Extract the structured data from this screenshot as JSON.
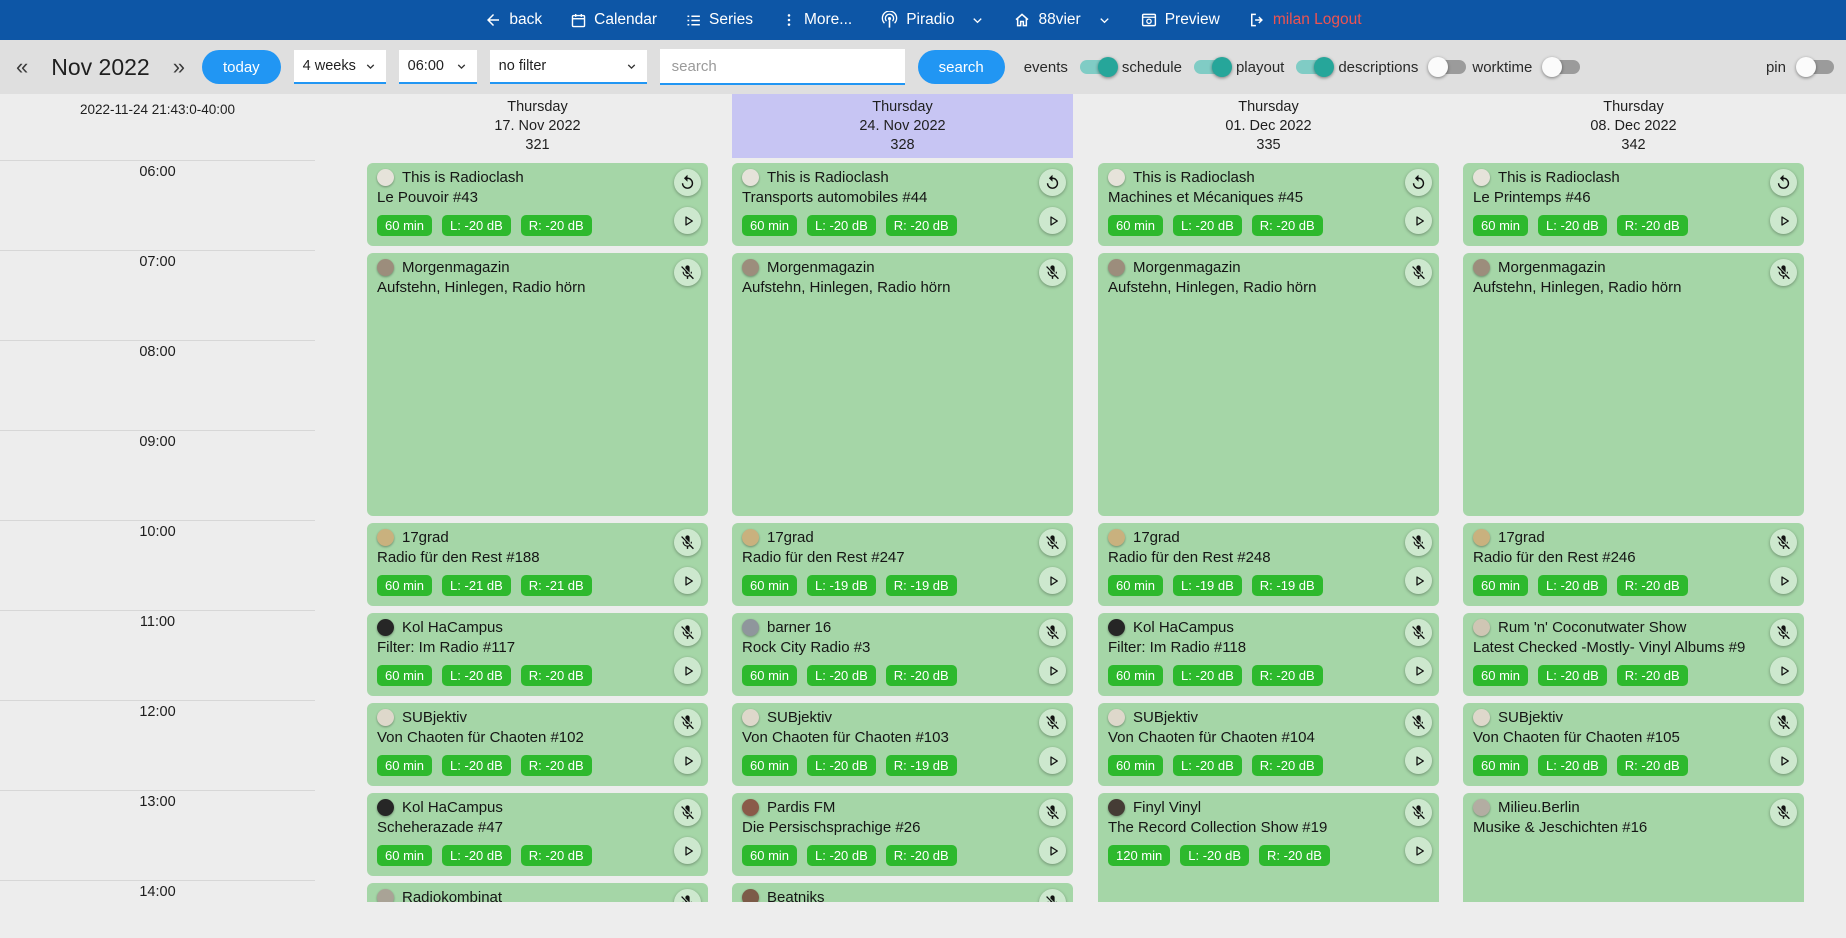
{
  "colors": {
    "nav_bg": "#0d56a6",
    "accent": "#2196f3",
    "toggle_on": "#26a69a",
    "toggle_track_on": "#80ccc5",
    "card_green": "#a5d6a7",
    "badge_green": "#2db92d",
    "highlight": "#c7c5f3",
    "logout_red": "#ef5350"
  },
  "nav": {
    "back_label": "back",
    "calendar_label": "Calendar",
    "series_label": "Series",
    "more_label": "More...",
    "piradio_label": "Piradio",
    "station_label": "88vier",
    "preview_label": "Preview",
    "logout_label": "milan Logout"
  },
  "toolbar": {
    "prev_symbol": "«",
    "next_symbol": "»",
    "month_title": "Nov 2022",
    "today_label": "today",
    "range_value": "4 weeks",
    "time_value": "06:00",
    "filter_value": "no filter",
    "search_placeholder": "search",
    "search_label": "search",
    "toggles": [
      {
        "label": "events",
        "on": true
      },
      {
        "label": "schedule",
        "on": true
      },
      {
        "label": "playout",
        "on": true
      },
      {
        "label": "descriptions",
        "on": false
      },
      {
        "label": "worktime",
        "on": false
      }
    ],
    "pin_toggle": {
      "label": "pin",
      "on": false
    }
  },
  "calendar": {
    "timestamp": "2022-11-24 21:43:0-40:00",
    "hours": [
      "06:00",
      "07:00",
      "08:00",
      "09:00",
      "10:00",
      "11:00",
      "12:00",
      "13:00",
      "14:00"
    ],
    "columns": [
      {
        "weekday": "Thursday",
        "date": "17. Nov 2022",
        "number": "321",
        "highlight": false,
        "events": [
          {
            "show": "This is Radioclash",
            "episode": "Le Pouvoir #43",
            "start": "06:00",
            "duration": 60,
            "badges": [
              "60 min",
              "L: -20 dB",
              "R: -20 dB"
            ],
            "top_icon": "replay",
            "play": true,
            "avatar": "#e6e3da"
          },
          {
            "show": "Morgenmagazin",
            "episode": "Aufstehn, Hinlegen, Radio hörn",
            "start": "07:00",
            "duration": 180,
            "badges": null,
            "top_icon": "mic-off",
            "play": false,
            "avatar": "#9c8d7c"
          },
          {
            "show": "17grad",
            "episode": "Radio für den Rest #188",
            "start": "10:00",
            "duration": 60,
            "badges": [
              "60 min",
              "L: -21 dB",
              "R: -21 dB"
            ],
            "top_icon": "mic-off",
            "play": true,
            "avatar": "#c9b17e"
          },
          {
            "show": "Kol HaCampus",
            "episode": "Filter: Im Radio #117",
            "start": "11:00",
            "duration": 60,
            "badges": [
              "60 min",
              "L: -20 dB",
              "R: -20 dB"
            ],
            "top_icon": "mic-off",
            "play": true,
            "avatar": "#262626"
          },
          {
            "show": "SUBjektiv",
            "episode": "Von Chaoten für Chaoten #102",
            "start": "12:00",
            "duration": 60,
            "badges": [
              "60 min",
              "L: -20 dB",
              "R: -20 dB"
            ],
            "top_icon": "mic-off",
            "play": true,
            "avatar": "#ded8cb"
          },
          {
            "show": "Kol HaCampus",
            "episode": "Scheherazade #47",
            "start": "13:00",
            "duration": 60,
            "badges": [
              "60 min",
              "L: -20 dB",
              "R: -20 dB"
            ],
            "top_icon": "mic-off",
            "play": true,
            "avatar": "#262626"
          },
          {
            "show": "Radiokombinat",
            "episode": "",
            "start": "14:00",
            "duration": 60,
            "badges": null,
            "top_icon": "mic-off",
            "play": false,
            "avatar": "#a9a396"
          }
        ]
      },
      {
        "weekday": "Thursday",
        "date": "24. Nov 2022",
        "number": "328",
        "highlight": true,
        "events": [
          {
            "show": "This is Radioclash",
            "episode": "Transports automobiles #44",
            "start": "06:00",
            "duration": 60,
            "badges": [
              "60 min",
              "L: -20 dB",
              "R: -20 dB"
            ],
            "top_icon": "replay",
            "play": true,
            "avatar": "#e6e3da"
          },
          {
            "show": "Morgenmagazin",
            "episode": "Aufstehn, Hinlegen, Radio hörn",
            "start": "07:00",
            "duration": 180,
            "badges": null,
            "top_icon": "mic-off",
            "play": false,
            "avatar": "#9c8d7c"
          },
          {
            "show": "17grad",
            "episode": "Radio für den Rest #247",
            "start": "10:00",
            "duration": 60,
            "badges": [
              "60 min",
              "L: -19 dB",
              "R: -19 dB"
            ],
            "top_icon": "mic-off",
            "play": true,
            "avatar": "#c9b17e"
          },
          {
            "show": "barner 16",
            "episode": "Rock City Radio #3",
            "start": "11:00",
            "duration": 60,
            "badges": [
              "60 min",
              "L: -20 dB",
              "R: -20 dB"
            ],
            "top_icon": "mic-off",
            "play": true,
            "avatar": "#8f969c"
          },
          {
            "show": "SUBjektiv",
            "episode": "Von Chaoten für Chaoten #103",
            "start": "12:00",
            "duration": 60,
            "badges": [
              "60 min",
              "L: -20 dB",
              "R: -19 dB"
            ],
            "top_icon": "mic-off",
            "play": true,
            "avatar": "#ded8cb"
          },
          {
            "show": "Pardis FM",
            "episode": "Die Persischsprachige #26",
            "start": "13:00",
            "duration": 60,
            "badges": [
              "60 min",
              "L: -20 dB",
              "R: -20 dB"
            ],
            "top_icon": "mic-off",
            "play": true,
            "avatar": "#8a5a49"
          },
          {
            "show": "Beatniks",
            "episode": "",
            "start": "14:00",
            "duration": 60,
            "badges": null,
            "top_icon": "mic-off",
            "play": false,
            "avatar": "#7c5b48"
          }
        ]
      },
      {
        "weekday": "Thursday",
        "date": "01. Dec 2022",
        "number": "335",
        "highlight": false,
        "events": [
          {
            "show": "This is Radioclash",
            "episode": "Machines et Mécaniques #45",
            "start": "06:00",
            "duration": 60,
            "badges": [
              "60 min",
              "L: -20 dB",
              "R: -20 dB"
            ],
            "top_icon": "replay",
            "play": true,
            "avatar": "#e6e3da"
          },
          {
            "show": "Morgenmagazin",
            "episode": "Aufstehn, Hinlegen, Radio hörn",
            "start": "07:00",
            "duration": 180,
            "badges": null,
            "top_icon": "mic-off",
            "play": false,
            "avatar": "#9c8d7c"
          },
          {
            "show": "17grad",
            "episode": "Radio für den Rest #248",
            "start": "10:00",
            "duration": 60,
            "badges": [
              "60 min",
              "L: -19 dB",
              "R: -19 dB"
            ],
            "top_icon": "mic-off",
            "play": true,
            "avatar": "#c9b17e"
          },
          {
            "show": "Kol HaCampus",
            "episode": "Filter: Im Radio #118",
            "start": "11:00",
            "duration": 60,
            "badges": [
              "60 min",
              "L: -20 dB",
              "R: -20 dB"
            ],
            "top_icon": "mic-off",
            "play": true,
            "avatar": "#262626"
          },
          {
            "show": "SUBjektiv",
            "episode": "Von Chaoten für Chaoten #104",
            "start": "12:00",
            "duration": 60,
            "badges": [
              "60 min",
              "L: -20 dB",
              "R: -20 dB"
            ],
            "top_icon": "mic-off",
            "play": true,
            "avatar": "#ded8cb"
          },
          {
            "show": "Finyl Vinyl",
            "episode": "The Record Collection Show #19",
            "start": "13:00",
            "duration": 120,
            "badges": [
              "120 min",
              "L: -20 dB",
              "R: -20 dB"
            ],
            "top_icon": "mic-off",
            "play": true,
            "avatar": "#453c35"
          }
        ]
      },
      {
        "weekday": "Thursday",
        "date": "08. Dec 2022",
        "number": "342",
        "highlight": false,
        "events": [
          {
            "show": "This is Radioclash",
            "episode": "Le Printemps #46",
            "start": "06:00",
            "duration": 60,
            "badges": [
              "60 min",
              "L: -20 dB",
              "R: -20 dB"
            ],
            "top_icon": "replay",
            "play": true,
            "avatar": "#e6e3da"
          },
          {
            "show": "Morgenmagazin",
            "episode": "Aufstehn, Hinlegen, Radio hörn",
            "start": "07:00",
            "duration": 180,
            "badges": null,
            "top_icon": "mic-off",
            "play": false,
            "avatar": "#9c8d7c"
          },
          {
            "show": "17grad",
            "episode": "Radio für den Rest #246",
            "start": "10:00",
            "duration": 60,
            "badges": [
              "60 min",
              "L: -20 dB",
              "R: -20 dB"
            ],
            "top_icon": "mic-off",
            "play": true,
            "avatar": "#c9b17e"
          },
          {
            "show": "Rum 'n' Coconutwater Show",
            "episode": "Latest Checked -Mostly- Vinyl Albums #9",
            "start": "11:00",
            "duration": 60,
            "badges": [
              "60 min",
              "L: -20 dB",
              "R: -20 dB"
            ],
            "top_icon": "mic-off",
            "play": true,
            "avatar": "#cfc6b4"
          },
          {
            "show": "SUBjektiv",
            "episode": "Von Chaoten für Chaoten #105",
            "start": "12:00",
            "duration": 60,
            "badges": [
              "60 min",
              "L: -20 dB",
              "R: -20 dB"
            ],
            "top_icon": "mic-off",
            "play": true,
            "avatar": "#ded8cb"
          },
          {
            "show": "Milieu.Berlin",
            "episode": "Musike & Jeschichten #16",
            "start": "13:00",
            "duration": 120,
            "badges": null,
            "top_icon": "mic-off",
            "play": false,
            "avatar": "#b3ada2"
          }
        ]
      }
    ]
  }
}
